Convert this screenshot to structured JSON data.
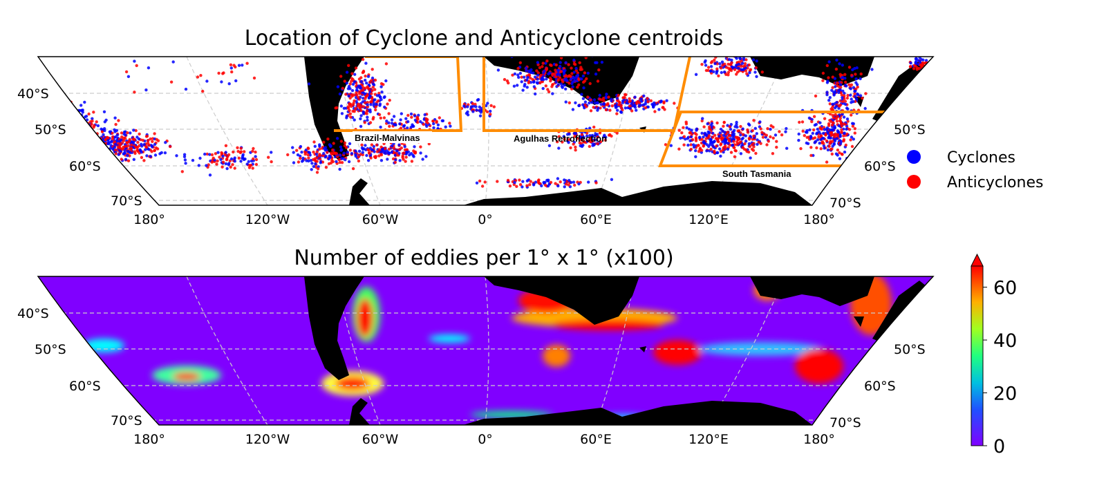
{
  "top_panel": {
    "title": "Location of Cyclone and Anticyclone centroids",
    "regions": [
      "Brazil-Malvinas",
      "Agulhas Retroflection",
      "South Tasmania"
    ],
    "region_box_color": "#ff8c00",
    "legend": [
      {
        "label": "Cyclones",
        "color": "#0000ff"
      },
      {
        "label": "Anticyclones",
        "color": "#ff0000"
      }
    ]
  },
  "bottom_panel": {
    "title": "Number of eddies per 1° x 1° (x100)",
    "background_color": "#8000ff",
    "colormap": "rainbow",
    "colorbar": {
      "ticks": [
        "0",
        "20",
        "40",
        "60"
      ],
      "range": [
        0,
        68
      ],
      "extend": "max"
    }
  },
  "axes": {
    "lat_left": [
      "40°S",
      "50°S",
      "60°S",
      "70°S"
    ],
    "lat_right": [
      "50°S",
      "60°S",
      "70°S"
    ],
    "lon": [
      "180°",
      "120°W",
      "60°W",
      "0°",
      "60°E",
      "120°E",
      "180°"
    ]
  },
  "land_color": "#000000"
}
